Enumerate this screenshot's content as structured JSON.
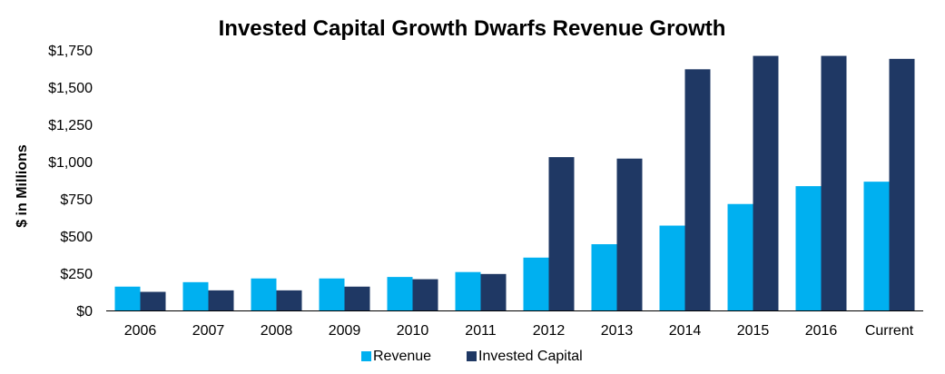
{
  "chart_data": {
    "type": "bar",
    "title": "Invested Capital Growth Dwarfs Revenue Growth",
    "xlabel": "",
    "ylabel": "$ in Millions",
    "categories": [
      "2006",
      "2007",
      "2008",
      "2009",
      "2010",
      "2011",
      "2012",
      "2013",
      "2014",
      "2015",
      "2016",
      "Current"
    ],
    "series": [
      {
        "name": "Revenue",
        "color": "#00B0F0",
        "values": [
          160,
          190,
          215,
          215,
          225,
          258,
          355,
          445,
          570,
          715,
          835,
          865
        ]
      },
      {
        "name": "Invested Capital",
        "color": "#1F3864",
        "values": [
          125,
          135,
          135,
          160,
          210,
          245,
          1030,
          1020,
          1620,
          1710,
          1710,
          1690
        ]
      }
    ],
    "ylim": [
      0,
      1750
    ],
    "yticks": [
      0,
      250,
      500,
      750,
      1000,
      1250,
      1500,
      1750
    ],
    "ytick_labels": [
      "$0",
      "$250",
      "$500",
      "$750",
      "$1,000",
      "$1,250",
      "$1,500",
      "$1,750"
    ],
    "grid": false,
    "legend_position": "bottom"
  }
}
